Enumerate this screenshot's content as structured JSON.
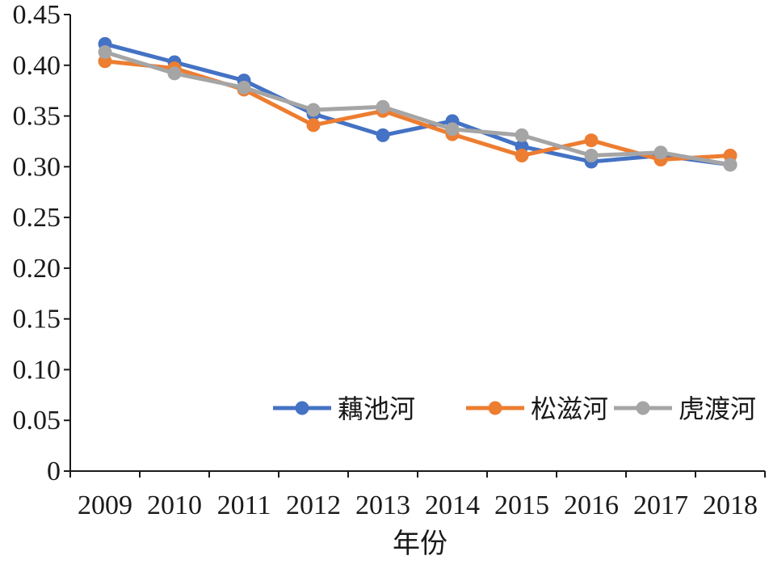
{
  "chart_data": {
    "type": "line",
    "categories": [
      "2009",
      "2010",
      "2011",
      "2012",
      "2013",
      "2014",
      "2015",
      "2016",
      "2017",
      "2018"
    ],
    "series": [
      {
        "name": "藕池河",
        "color": "#4472C4",
        "values": [
          0.421,
          0.403,
          0.385,
          0.352,
          0.331,
          0.345,
          0.32,
          0.305,
          0.311,
          0.302
        ]
      },
      {
        "name": "松滋河",
        "color": "#ED7D31",
        "values": [
          0.404,
          0.397,
          0.376,
          0.341,
          0.355,
          0.332,
          0.311,
          0.326,
          0.307,
          0.311
        ]
      },
      {
        "name": "虎渡河",
        "color": "#A5A5A5",
        "values": [
          0.413,
          0.392,
          0.378,
          0.356,
          0.359,
          0.337,
          0.331,
          0.311,
          0.314,
          0.302
        ]
      }
    ],
    "xlabel": "年份",
    "ylabel": "",
    "ylim": [
      0,
      0.45
    ],
    "yticks": [
      "0",
      "0.05",
      "0.10",
      "0.15",
      "0.20",
      "0.25",
      "0.30",
      "0.35",
      "0.40",
      "0.45"
    ],
    "grid": false,
    "legend": "bottom-right"
  }
}
